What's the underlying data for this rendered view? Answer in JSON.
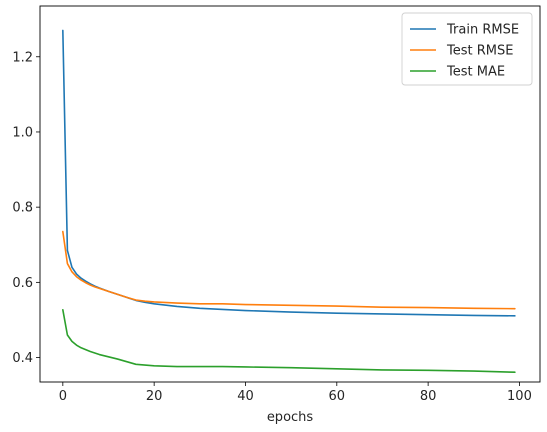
{
  "chart_data": {
    "type": "line",
    "title": "",
    "xlabel": "epochs",
    "ylabel": "",
    "xlim": [
      -5,
      104.5
    ],
    "ylim": [
      0.335,
      1.335
    ],
    "xticks": [
      0,
      20,
      40,
      60,
      80,
      100
    ],
    "yticks": [
      0.4,
      0.6,
      0.8,
      1.0,
      1.2
    ],
    "grid": false,
    "legend_position": "top-right",
    "series": [
      {
        "name": "Train RMSE",
        "color": "#1f77b4",
        "x": [
          0,
          1,
          2,
          3,
          4,
          5,
          6,
          7,
          8,
          10,
          12,
          14,
          16,
          18,
          20,
          25,
          30,
          35,
          40,
          50,
          60,
          70,
          80,
          90,
          99
        ],
        "y": [
          1.27,
          0.685,
          0.64,
          0.622,
          0.611,
          0.603,
          0.596,
          0.59,
          0.585,
          0.576,
          0.568,
          0.56,
          0.552,
          0.547,
          0.543,
          0.536,
          0.531,
          0.528,
          0.525,
          0.521,
          0.518,
          0.516,
          0.514,
          0.512,
          0.511
        ]
      },
      {
        "name": "Test RMSE",
        "color": "#ff7f0e",
        "x": [
          0,
          1,
          2,
          3,
          4,
          5,
          6,
          7,
          8,
          10,
          12,
          14,
          16,
          18,
          20,
          25,
          30,
          35,
          40,
          50,
          60,
          70,
          80,
          90,
          99
        ],
        "y": [
          0.735,
          0.65,
          0.628,
          0.615,
          0.606,
          0.599,
          0.593,
          0.588,
          0.584,
          0.576,
          0.568,
          0.56,
          0.553,
          0.55,
          0.548,
          0.545,
          0.543,
          0.543,
          0.541,
          0.539,
          0.537,
          0.534,
          0.533,
          0.531,
          0.53
        ]
      },
      {
        "name": "Test MAE",
        "color": "#2ca02c",
        "x": [
          0,
          1,
          2,
          3,
          4,
          5,
          6,
          7,
          8,
          10,
          12,
          14,
          16,
          18,
          20,
          25,
          30,
          35,
          40,
          50,
          60,
          70,
          80,
          90,
          99
        ],
        "y": [
          0.527,
          0.46,
          0.443,
          0.433,
          0.426,
          0.421,
          0.416,
          0.412,
          0.408,
          0.402,
          0.396,
          0.389,
          0.382,
          0.38,
          0.378,
          0.376,
          0.376,
          0.376,
          0.375,
          0.373,
          0.37,
          0.367,
          0.366,
          0.364,
          0.361
        ]
      }
    ]
  }
}
